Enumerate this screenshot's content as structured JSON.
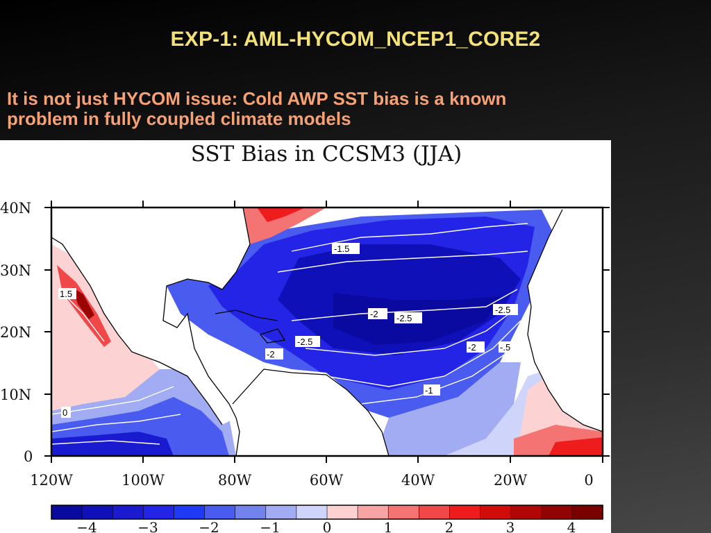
{
  "slide": {
    "title": "EXP-1: AML-HYCOM_NCEP1_CORE2",
    "subtitle_line1": "It is not just HYCOM issue: Cold AWP SST bias is a known",
    "subtitle_line2": "problem in fully coupled climate models"
  },
  "figure": {
    "title": "SST Bias in CCSM3 (JJA)",
    "y_ticks": [
      "40N",
      "30N",
      "20N",
      "10N",
      "0"
    ],
    "x_ticks": [
      "120W",
      "100W",
      "80W",
      "60W",
      "40W",
      "20W",
      "0"
    ],
    "colorbar_ticks": [
      "−4",
      "−3",
      "−2",
      "−1",
      "0",
      "1",
      "2",
      "3",
      "4"
    ],
    "colorbar_colors": [
      "#0b0aa0",
      "#1010b8",
      "#1a1ad0",
      "#2424e6",
      "#1e3af2",
      "#4a5cf0",
      "#7383ee",
      "#a2acf2",
      "#cfd4fb",
      "#fdd1d1",
      "#f8a4a4",
      "#f47474",
      "#f04848",
      "#ee1c1c",
      "#d20b0b",
      "#b00606",
      "#920303",
      "#7a0000"
    ],
    "contour_labels": [
      "-1.5",
      "1.5",
      "-2",
      "-2.5",
      "-2.5",
      "-2",
      "-2.5",
      "-2",
      "-.5",
      "-1",
      "0"
    ]
  }
}
